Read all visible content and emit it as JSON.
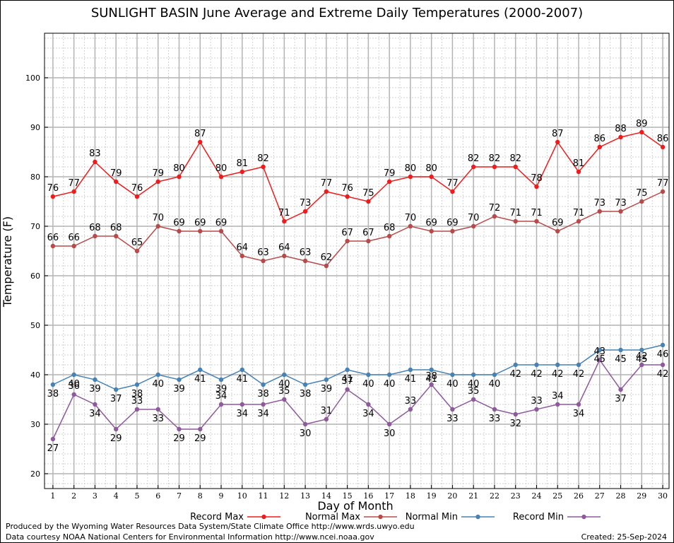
{
  "colors": {
    "record_max": "#ee1c1c",
    "normal_max": "#b84a4a",
    "normal_min": "#4682b4",
    "record_min": "#8e5a9c",
    "grid_major": "#b4b4b4",
    "grid_minor": "#d2d2d2"
  },
  "footer": {
    "produced_by": "Produced by the Wyoming Water Resources Data System/State Climate Office http://www.wrds.uwyo.edu",
    "courtesy": "Data courtesy NOAA National Centers for Environmental Information http://www.ncei.noaa.gov",
    "created": "Created:  25-Sep-2024"
  },
  "chart_data": {
    "type": "line",
    "title": "SUNLIGHT BASIN June Average and Extreme Daily Temperatures (2000-2007)",
    "xlabel": "Day of Month",
    "ylabel": "Temperature (F)",
    "ylim": [
      17,
      109
    ],
    "xlim": [
      0.6,
      30.3
    ],
    "yticks": [
      20,
      30,
      40,
      50,
      60,
      70,
      80,
      90,
      100
    ],
    "grid": true,
    "legend_position": "bottom",
    "x": [
      1,
      2,
      3,
      4,
      5,
      6,
      7,
      8,
      9,
      10,
      11,
      12,
      13,
      14,
      15,
      16,
      17,
      18,
      19,
      20,
      21,
      22,
      23,
      24,
      25,
      26,
      27,
      28,
      29,
      30
    ],
    "series": [
      {
        "name": "Record Max",
        "color_key": "record_max",
        "label_pos": "above",
        "values": [
          76,
          77,
          83,
          79,
          76,
          79,
          80,
          87,
          80,
          81,
          82,
          71,
          73,
          77,
          76,
          75,
          79,
          80,
          80,
          77,
          82,
          82,
          82,
          78,
          87,
          81,
          86,
          88,
          89,
          86
        ]
      },
      {
        "name": "Normal Max",
        "color_key": "normal_max",
        "label_pos": "above",
        "values": [
          66,
          66,
          68,
          68,
          65,
          70,
          69,
          69,
          69,
          64,
          63,
          64,
          63,
          62,
          67,
          67,
          68,
          70,
          69,
          69,
          70,
          72,
          71,
          71,
          69,
          71,
          73,
          73,
          75,
          77
        ]
      },
      {
        "name": "Normal Min",
        "color_key": "normal_min",
        "label_pos": "below_if_up",
        "values": [
          38,
          40,
          39,
          37,
          38,
          40,
          39,
          41,
          39,
          41,
          38,
          40,
          38,
          39,
          41,
          40,
          40,
          41,
          41,
          40,
          40,
          40,
          42,
          42,
          42,
          42,
          45,
          45,
          45,
          46
        ]
      },
      {
        "name": "Record Min",
        "color_key": "record_min",
        "label_pos": "smart",
        "values": [
          27,
          36,
          34,
          29,
          33,
          33,
          29,
          29,
          34,
          34,
          34,
          35,
          30,
          31,
          37,
          34,
          30,
          33,
          38,
          33,
          35,
          33,
          32,
          33,
          34,
          34,
          43,
          37,
          42,
          42
        ]
      }
    ]
  }
}
